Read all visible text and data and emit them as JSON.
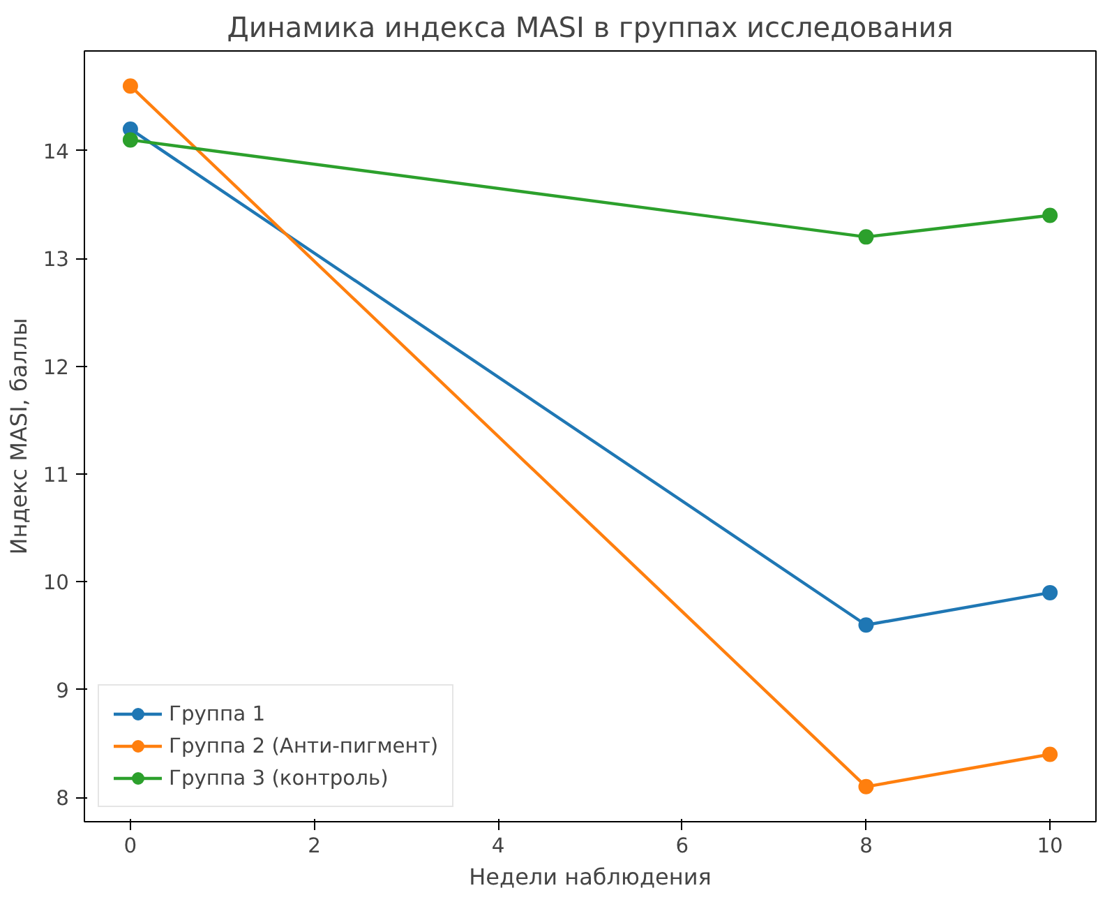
{
  "chart_data": {
    "type": "line",
    "title": "Динамика индекса MASI в группах исследования",
    "xlabel": "Недели наблюдения",
    "ylabel": "Индекс MASI, баллы",
    "x": [
      0,
      8,
      10
    ],
    "series": [
      {
        "name": "Группа 1",
        "color": "#1f77b4",
        "values": [
          14.2,
          9.6,
          9.9
        ]
      },
      {
        "name": "Группа 2 (Анти-пигмент)",
        "color": "#ff7f0e",
        "values": [
          14.6,
          8.1,
          8.4
        ]
      },
      {
        "name": "Группа 3 (контроль)",
        "color": "#2ca02c",
        "values": [
          14.1,
          13.2,
          13.4
        ]
      }
    ],
    "xlim": [
      -0.5,
      10.5
    ],
    "ylim": [
      7.775,
      14.925
    ],
    "xticks": [
      0,
      2,
      4,
      6,
      8,
      10
    ],
    "yticks": [
      8,
      9,
      10,
      11,
      12,
      13,
      14
    ],
    "grid": false,
    "legend": "bottom left",
    "marker": "circle",
    "line_style": "solid"
  }
}
